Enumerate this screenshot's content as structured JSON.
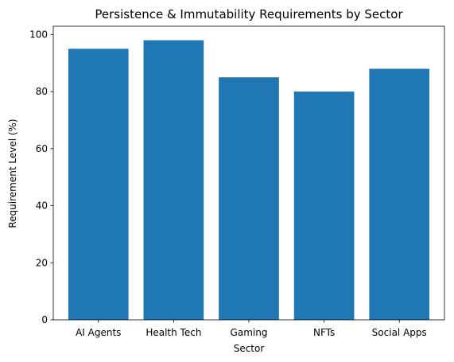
{
  "chart_data": {
    "type": "bar",
    "title": "Persistence & Immutability Requirements by Sector",
    "xlabel": "Sector",
    "ylabel": "Requirement Level (%)",
    "categories": [
      "AI Agents",
      "Health Tech",
      "Gaming",
      "NFTs",
      "Social Apps"
    ],
    "values": [
      95,
      98,
      85,
      80,
      88
    ],
    "ylim": [
      0,
      102.9
    ],
    "yticks": [
      0,
      20,
      40,
      60,
      80,
      100
    ],
    "bar_color": "#1f77b4",
    "grid": false,
    "legend": "none"
  }
}
